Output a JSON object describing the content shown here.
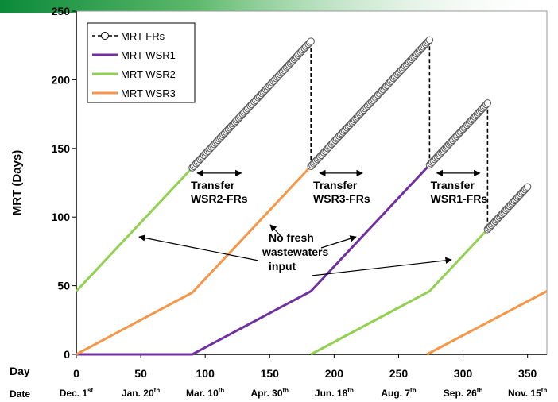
{
  "chart_data": {
    "type": "line",
    "title": "",
    "xlabel": "Day",
    "ylabel": "MRT (Days)",
    "xlim": [
      0,
      365
    ],
    "ylim": [
      0,
      250
    ],
    "x_ticks": [
      0,
      50,
      100,
      150,
      200,
      250,
      300,
      350
    ],
    "y_ticks": [
      0,
      50,
      100,
      150,
      200,
      250
    ],
    "secondary_x_axis": {
      "label": "Date",
      "ticks": [
        {
          "x": 0,
          "main": "Dec. 1",
          "sup": "st"
        },
        {
          "x": 50,
          "main": "Jan. 20",
          "sup": "th"
        },
        {
          "x": 100,
          "main": "Mar. 10",
          "sup": "th"
        },
        {
          "x": 150,
          "main": "Apr. 30",
          "sup": "th"
        },
        {
          "x": 200,
          "main": "Jun. 18",
          "sup": "th"
        },
        {
          "x": 250,
          "main": "Aug. 7",
          "sup": "th"
        },
        {
          "x": 300,
          "main": "Sep. 26",
          "sup": "th"
        },
        {
          "x": 350,
          "main": "Nov. 15",
          "sup": "th"
        }
      ]
    },
    "legend_position": "top-left",
    "series": [
      {
        "name": "MRT FRs",
        "style": "dashed-line-circles",
        "color": "#000000",
        "segments": [
          {
            "x": [
              90,
              182
            ],
            "y": [
              136,
              228
            ]
          },
          {
            "x": [
              182,
              274
            ],
            "y": [
              137,
              229
            ]
          },
          {
            "x": [
              274,
              319
            ],
            "y": [
              138,
              183
            ]
          },
          {
            "x": [
              319,
              350
            ],
            "y": [
              91,
              122
            ]
          }
        ],
        "drops": [
          {
            "x": 182,
            "from": 228,
            "to": 137
          },
          {
            "x": 274,
            "from": 229,
            "to": 138
          },
          {
            "x": 319,
            "from": 183,
            "to": 91
          }
        ]
      },
      {
        "name": "MRT WSR1",
        "color": "#7030A0",
        "x": [
          0,
          90,
          182,
          274
        ],
        "y": [
          0,
          0,
          46,
          138
        ]
      },
      {
        "name": "MRT WSR2",
        "color": "#92D050",
        "segments": [
          {
            "x": [
              0,
              90
            ],
            "y": [
              46,
              136
            ]
          },
          {
            "x": [
              182,
              274,
              319
            ],
            "y": [
              0,
              46,
              91
            ]
          }
        ]
      },
      {
        "name": "MRT WSR3",
        "color": "#F79646",
        "segments": [
          {
            "x": [
              0,
              90,
              182
            ],
            "y": [
              0,
              45,
              137
            ]
          },
          {
            "x": [
              272,
              365
            ],
            "y": [
              0,
              46
            ]
          }
        ]
      }
    ],
    "annotations": {
      "transfers": [
        {
          "lines": [
            "Transfer",
            "WSR2-FRs"
          ],
          "arrow_x": [
            90,
            128
          ],
          "arrow_y": 132
        },
        {
          "lines": [
            "Transfer",
            "WSR3-FRs"
          ],
          "arrow_x": [
            185,
            222
          ],
          "arrow_y": 132
        },
        {
          "lines": [
            "Transfer",
            "WSR1-FRs"
          ],
          "arrow_x": [
            276,
            313
          ],
          "arrow_y": 132
        }
      ],
      "no_input": {
        "lines": [
          "No fresh",
          "wastewaters",
          "input"
        ]
      }
    }
  }
}
